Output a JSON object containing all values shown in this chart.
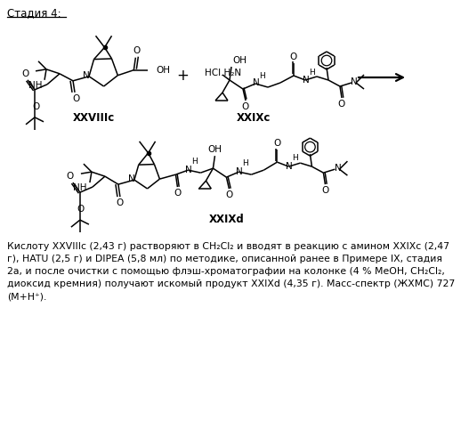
{
  "title": "Стадия 4:",
  "background_color": "#ffffff",
  "text_color": "#000000",
  "figure_width": 5.27,
  "figure_height": 5.0,
  "dpi": 100,
  "label_XXVIIIc": "XXVIIIc",
  "label_XXIXc": "XXIXc",
  "label_XXIXd": "XXIXd",
  "para_lines": [
    "Кислоту XXVIIIc (2,43 г) растворяют в CH₂Cl₂ и вводят в реакцию с амином XXIXc (2,47",
    "г), HATU (2,5 г) и DIPEA (5,8 мл) по методике, описанной ранее в Примере IX, стадия",
    "2а, и после очистки с помощью флэш-хроматографии на колонке (4 % MeOH, CH₂Cl₂,",
    "диоксид кремния) получают искомый продукт XXIXd (4,35 г). Масс-спектр (ЖХМС) 727",
    "(M+H⁺)."
  ]
}
